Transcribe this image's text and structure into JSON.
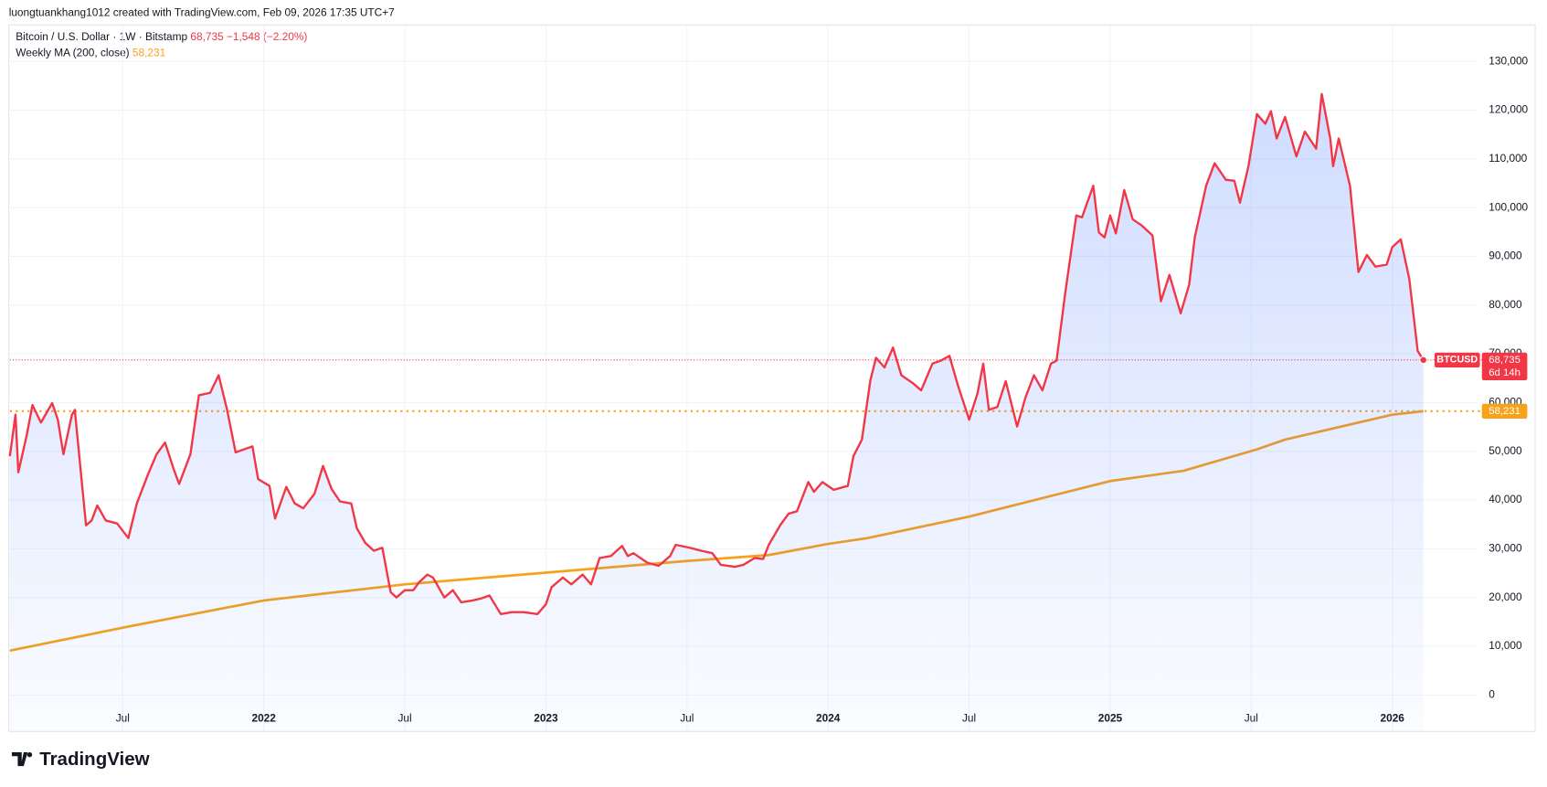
{
  "header": {
    "attribution": "luongtuankhang1012 created with TradingView.com, Feb 09, 2026 17:35 UTC+7",
    "symbol": "Bitcoin / U.S. Dollar · 1W · Bitstamp",
    "change": "−1,548 (−2.20%)"
  },
  "chart_data": {
    "type": "line",
    "grid": true,
    "xlim": [
      2021.1,
      2026.3
    ],
    "ylim": [
      -7500,
      137500
    ],
    "xticks": [
      {
        "value": 2021.5,
        "label": "Jul"
      },
      2022,
      {
        "value": 2022.5,
        "label": "Jul"
      },
      2023,
      {
        "value": 2023.5,
        "label": "Jul"
      },
      2024,
      {
        "value": 2024.5,
        "label": "Jul"
      },
      2025,
      {
        "value": 2025.5,
        "label": "Jul"
      },
      2026
    ],
    "yticks": [
      0,
      {
        "value": 10000,
        "label": "10,000"
      },
      {
        "value": 20000,
        "label": "20,000"
      },
      {
        "value": 30000,
        "label": "30,000"
      },
      {
        "value": 40000,
        "label": "40,000"
      },
      {
        "value": 50000,
        "label": "50,000"
      },
      {
        "value": 60000,
        "label": "60,000"
      },
      {
        "value": 70000,
        "label": "70,000"
      },
      {
        "value": 80000,
        "label": "80,000"
      },
      {
        "value": 90000,
        "label": "90,000"
      },
      {
        "value": 100000,
        "label": "100,000"
      },
      {
        "value": 110000,
        "label": "110,000"
      },
      {
        "value": 120000,
        "label": "120,000"
      },
      {
        "value": 130000,
        "label": "130,000"
      }
    ],
    "series": [
      {
        "name": "BTCUSD",
        "color": "#f23645",
        "area": true,
        "last_label": "68,735",
        "countdown": "6d 14h",
        "x": [
          2021.1,
          2021.12,
          2021.13,
          2021.16,
          2021.18,
          2021.21,
          2021.25,
          2021.27,
          2021.29,
          2021.32,
          2021.33,
          2021.37,
          2021.39,
          2021.41,
          2021.44,
          2021.48,
          2021.52,
          2021.55,
          2021.59,
          2021.62,
          2021.65,
          2021.68,
          2021.7,
          2021.74,
          2021.77,
          2021.81,
          2021.84,
          2021.87,
          2021.9,
          2021.93,
          2021.96,
          2021.98,
          2022.02,
          2022.04,
          2022.08,
          2022.11,
          2022.14,
          2022.18,
          2022.21,
          2022.24,
          2022.27,
          2022.31,
          2022.33,
          2022.36,
          2022.39,
          2022.42,
          2022.45,
          2022.47,
          2022.5,
          2022.53,
          2022.55,
          2022.58,
          2022.6,
          2022.64,
          2022.67,
          2022.7,
          2022.74,
          2022.77,
          2022.8,
          2022.84,
          2022.88,
          2022.92,
          2022.97,
          2023.0,
          2023.02,
          2023.06,
          2023.09,
          2023.13,
          2023.16,
          2023.19,
          2023.23,
          2023.27,
          2023.29,
          2023.31,
          2023.36,
          2023.4,
          2023.44,
          2023.46,
          2023.51,
          2023.55,
          2023.59,
          2023.62,
          2023.67,
          2023.7,
          2023.74,
          2023.77,
          2023.79,
          2023.83,
          2023.86,
          2023.89,
          2023.93,
          2023.95,
          2023.98,
          2024.02,
          2024.07,
          2024.09,
          2024.12,
          2024.15,
          2024.17,
          2024.2,
          2024.23,
          2024.26,
          2024.3,
          2024.33,
          2024.37,
          2024.4,
          2024.43,
          2024.46,
          2024.5,
          2024.53,
          2024.55,
          2024.57,
          2024.6,
          2024.63,
          2024.67,
          2024.7,
          2024.73,
          2024.76,
          2024.79,
          2024.81,
          2024.84,
          2024.88,
          2024.9,
          2024.94,
          2024.96,
          2024.98,
          2025.0,
          2025.02,
          2025.05,
          2025.08,
          2025.11,
          2025.15,
          2025.18,
          2025.21,
          2025.25,
          2025.28,
          2025.3,
          2025.34,
          2025.37,
          2025.41,
          2025.44,
          2025.46,
          2025.49,
          2025.52,
          2025.55,
          2025.57,
          2025.59,
          2025.62,
          2025.66,
          2025.69,
          2025.73,
          2025.75,
          2025.78,
          2025.79,
          2025.81,
          2025.85,
          2025.88,
          2025.91,
          2025.94,
          2025.98,
          2026.0,
          2026.03,
          2026.06,
          2026.09,
          2026.11
        ],
        "values": [
          49000,
          57500,
          45700,
          53400,
          59500,
          55900,
          59900,
          56500,
          49400,
          57500,
          58500,
          34800,
          35800,
          38900,
          35800,
          35200,
          32200,
          39300,
          45300,
          49400,
          51800,
          46400,
          43300,
          49400,
          61500,
          62000,
          65600,
          58500,
          49800,
          50400,
          51000,
          44300,
          42900,
          36200,
          42700,
          39300,
          38300,
          41300,
          47000,
          42300,
          39700,
          39300,
          34200,
          31200,
          29600,
          30200,
          21100,
          20000,
          21500,
          21500,
          23100,
          24700,
          24100,
          20000,
          21500,
          19000,
          19400,
          19800,
          20400,
          16600,
          17000,
          17000,
          16600,
          18600,
          22100,
          24100,
          22700,
          24700,
          22700,
          28100,
          28500,
          30600,
          28500,
          29100,
          27100,
          26500,
          28500,
          30800,
          30200,
          29600,
          29100,
          26700,
          26300,
          26700,
          28100,
          27900,
          30800,
          34800,
          37200,
          37700,
          43700,
          41700,
          43700,
          42100,
          42900,
          49000,
          52400,
          64600,
          69200,
          67200,
          71300,
          65600,
          64000,
          62500,
          68000,
          68600,
          69600,
          63600,
          56500,
          61900,
          68000,
          58500,
          59100,
          64400,
          55100,
          61100,
          65600,
          62500,
          68000,
          68600,
          82200,
          98400,
          98000,
          104500,
          94900,
          93900,
          98400,
          94700,
          103600,
          97600,
          96400,
          94300,
          80800,
          86200,
          78300,
          84200,
          93900,
          104500,
          109100,
          105700,
          105500,
          101000,
          108500,
          119200,
          117200,
          119800,
          114200,
          118600,
          110500,
          115600,
          112100,
          123300,
          114200,
          108500,
          114200,
          104500,
          86800,
          90300,
          87900,
          88300,
          91900,
          93500,
          85400,
          70600,
          68735
        ]
      },
      {
        "name": "Weekly MA (200, close)",
        "color": "#f7a21b",
        "last_label": "58,231",
        "x": [
          2021.1,
          2021.5,
          2022.0,
          2022.5,
          2023.0,
          2023.5,
          2023.79,
          2024.0,
          2024.14,
          2024.5,
          2025.0,
          2025.26,
          2025.52,
          2025.62,
          2026.0,
          2026.11
        ],
        "values": [
          9100,
          13800,
          19400,
          22700,
          25100,
          27500,
          28700,
          31000,
          32200,
          36600,
          43900,
          46000,
          50400,
          52400,
          57500,
          58231
        ]
      }
    ]
  },
  "footer": {
    "brand": "TradingView"
  }
}
